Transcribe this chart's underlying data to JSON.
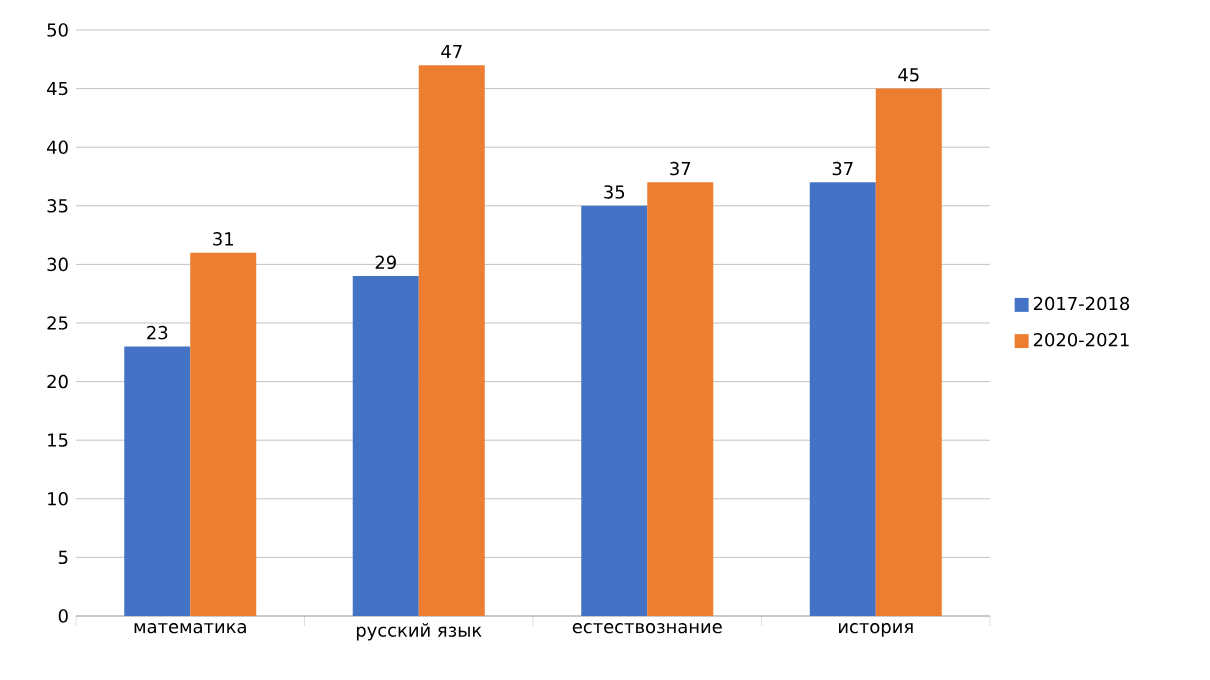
{
  "chart_data": {
    "type": "bar",
    "categories": [
      "математика",
      "русский язык",
      "естествознание",
      "история"
    ],
    "series": [
      {
        "name": "2017-2018",
        "color": "#4472c4",
        "values": [
          23,
          29,
          35,
          37
        ]
      },
      {
        "name": "2020-2021",
        "color": "#ed7d31",
        "values": [
          31,
          47,
          37,
          45
        ]
      }
    ],
    "ylim": [
      0,
      50
    ],
    "yticks": [
      0,
      5,
      10,
      15,
      20,
      25,
      30,
      35,
      40,
      45,
      50
    ],
    "grid": "y",
    "legend": "right",
    "data_labels": true
  }
}
